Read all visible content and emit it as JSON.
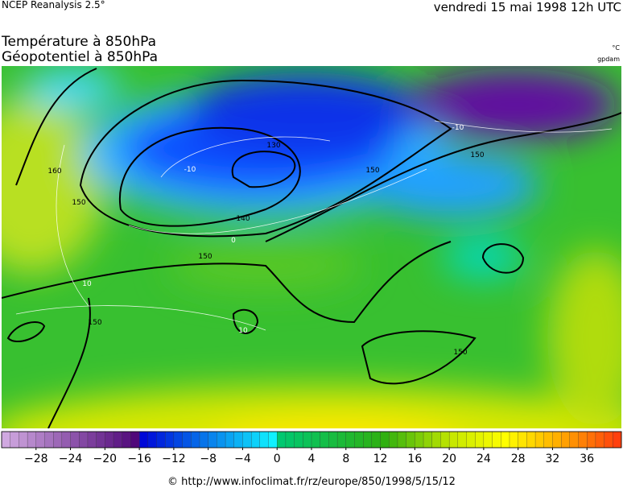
{
  "header": {
    "source": "NCEP Reanalysis 2.5°",
    "date": "vendredi 15 mai 1998 12h UTC"
  },
  "titles": [
    "Température à 850hPa",
    "Géopotentiel à 850hPa"
  ],
  "units": {
    "temperature": "°C",
    "geopotential": "gpdam"
  },
  "contour_labels": {
    "geopotential": [
      "130",
      "140",
      "150",
      "150",
      "150",
      "150",
      "150",
      "150",
      "160"
    ],
    "temperature": [
      "-10",
      "0",
      "10",
      "10",
      "-10"
    ]
  },
  "colorbar": {
    "range": [
      -32,
      40
    ],
    "step": 1,
    "color_stops": [
      {
        "value": -32,
        "color": "#d0a8e0"
      },
      {
        "value": -17,
        "color": "#50087a"
      },
      {
        "value": -16,
        "color": "#0008d8"
      },
      {
        "value": -1,
        "color": "#10f0ff"
      },
      {
        "value": 0,
        "color": "#00c870"
      },
      {
        "value": 12,
        "color": "#30b010"
      },
      {
        "value": 20,
        "color": "#c8e800"
      },
      {
        "value": 26,
        "color": "#ffff00"
      },
      {
        "value": 32,
        "color": "#ffb000"
      },
      {
        "value": 40,
        "color": "#ff3010"
      }
    ],
    "ticks": [
      {
        "value": -28,
        "label": "−28"
      },
      {
        "value": -24,
        "label": "−24"
      },
      {
        "value": -20,
        "label": "−20"
      },
      {
        "value": -16,
        "label": "−16"
      },
      {
        "value": -12,
        "label": "−12"
      },
      {
        "value": -8,
        "label": "−8"
      },
      {
        "value": -4,
        "label": "−4"
      },
      0,
      4,
      8,
      12,
      16,
      20,
      24,
      28,
      32,
      36
    ]
  },
  "footer": "© http://www.infoclimat.fr/rz/europe/850/1998/5/15/12"
}
